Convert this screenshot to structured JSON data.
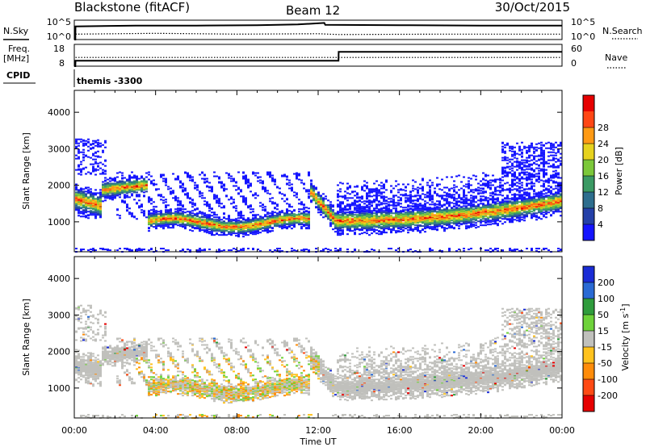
{
  "header": {
    "station": "Blackstone (fitACF)",
    "beam": "Beam 12",
    "date": "30/Oct/2015"
  },
  "summary_panels": {
    "nsky_label": "N.Sky",
    "nsearch_label": "N.Search",
    "noise_ticks": [
      "10^5",
      "10^0"
    ],
    "noise_ticks_right": [
      "10^5",
      "10^0"
    ],
    "freq_label": "Freq.",
    "freq_unit": "[MHz]",
    "freq_ticks": [
      "18",
      "8"
    ],
    "nave_label": "Nave",
    "nave_ticks": [
      "60",
      "0"
    ],
    "cpid_label": "CPID",
    "cpid_value": "themis -3300"
  },
  "chart_data": [
    {
      "type": "line",
      "panel": "noise",
      "ylim_log10": [
        0,
        5
      ],
      "x_unit": "hours UT",
      "series": [
        {
          "name": "N.Sky",
          "style": "solid",
          "x": [
            0,
            0.05,
            0.06,
            3,
            6,
            9,
            11,
            12.3,
            12.35,
            16,
            20,
            24
          ],
          "values_log10": [
            0,
            0,
            3.4,
            3.6,
            3.6,
            3.7,
            3.9,
            4.3,
            3.8,
            3.7,
            3.6,
            3.6
          ]
        },
        {
          "name": "N.Search",
          "style": "dotted",
          "x": [
            0.06,
            4,
            8,
            12,
            13,
            18,
            24
          ],
          "values_log10": [
            1.4,
            1.6,
            1.4,
            1.5,
            1.3,
            1.4,
            1.4
          ]
        }
      ]
    },
    {
      "type": "line",
      "panel": "frequency",
      "ylim": [
        8,
        18
      ],
      "x_unit": "hours UT",
      "series": [
        {
          "name": "Freq.",
          "style": "solid",
          "x": [
            0,
            0.05,
            0.06,
            13,
            13.01,
            24
          ],
          "values": [
            8,
            8,
            10.5,
            10.5,
            14.6,
            14.6
          ]
        },
        {
          "name": "Nave",
          "style": "dotted",
          "x": [
            0.06,
            24
          ],
          "values": [
            12,
            12
          ]
        }
      ]
    },
    {
      "type": "heatmap",
      "panel": "power",
      "ylabel": "Slant Range [km]",
      "xlim": [
        0,
        24
      ],
      "ylim": [
        180,
        4600
      ],
      "yticks": [
        1000,
        2000,
        3000,
        4000
      ],
      "colorbar": {
        "label": "Power [dB]",
        "ticks": [
          4,
          8,
          12,
          16,
          20,
          24,
          28
        ],
        "range": [
          0,
          30
        ],
        "colors": [
          "#1414ff",
          "#2440a8",
          "#2e6e8e",
          "#3b9a64",
          "#7cc83a",
          "#e6d21e",
          "#ff9a14",
          "#ff4614",
          "#e60000"
        ]
      }
    },
    {
      "type": "heatmap",
      "panel": "velocity",
      "ylabel": "Slant Range [km]",
      "xlabel": "Time UT",
      "xlim": [
        0,
        24
      ],
      "ylim": [
        180,
        4600
      ],
      "xticks": [
        "00:00",
        "04:00",
        "08:00",
        "12:00",
        "16:00",
        "20:00",
        "00:00"
      ],
      "yticks": [
        1000,
        2000,
        3000,
        4000
      ],
      "colorbar": {
        "label": "Velocity [m s-1]",
        "ticks": [
          "200",
          "100",
          "50",
          "15",
          "-15",
          "-50",
          "-100",
          "-200"
        ],
        "colors": [
          "#1a2cd6",
          "#2a6ad4",
          "#2f9c3c",
          "#6ed23a",
          "#c0c0bc",
          "#ffc21e",
          "#ff8c0a",
          "#ff4a14",
          "#e60000"
        ]
      }
    }
  ]
}
